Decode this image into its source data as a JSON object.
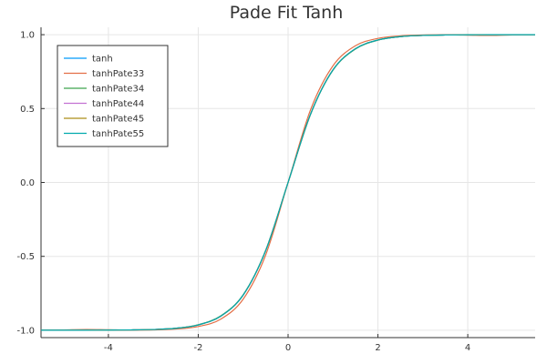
{
  "chart_data": {
    "type": "line",
    "title": "Pade Fit Tanh",
    "xlabel": "",
    "ylabel": "",
    "xlim": [
      -5.5,
      5.5
    ],
    "ylim": [
      -1.05,
      1.05
    ],
    "xticks": [
      -4,
      -2,
      0,
      2,
      4
    ],
    "xtick_labels": [
      "-4",
      "-2",
      "0",
      "2",
      "4"
    ],
    "yticks": [
      -1.0,
      -0.5,
      0.0,
      0.5,
      1.0
    ],
    "ytick_labels": [
      "-1.0",
      "-0.5",
      "0.0",
      "0.5",
      "1.0"
    ],
    "grid": true,
    "legend_position": "top-left",
    "x": [
      -5.5,
      -5.0,
      -4.5,
      -4.0,
      -3.5,
      -3.0,
      -2.5,
      -2.0,
      -1.5,
      -1.0,
      -0.5,
      0.0,
      0.5,
      1.0,
      1.5,
      2.0,
      2.5,
      3.0,
      3.5,
      4.0,
      4.5,
      5.0,
      5.5
    ],
    "series": [
      {
        "name": "tanh",
        "color": "#009AFA",
        "values": [
          -1.0,
          -1.0,
          -1.0,
          -0.999,
          -0.998,
          -0.995,
          -0.987,
          -0.964,
          -0.905,
          -0.762,
          -0.462,
          0.0,
          0.462,
          0.762,
          0.905,
          0.964,
          0.987,
          0.995,
          0.998,
          0.999,
          1.0,
          1.0,
          1.0
        ]
      },
      {
        "name": "tanhPate33",
        "color": "#E36F47",
        "values": [
          -1.0,
          -0.998,
          -0.995,
          -0.997,
          -0.999,
          -0.998,
          -0.992,
          -0.975,
          -0.925,
          -0.79,
          -0.492,
          0.0,
          0.492,
          0.79,
          0.925,
          0.975,
          0.992,
          0.998,
          0.999,
          0.997,
          0.995,
          0.998,
          1.0
        ]
      },
      {
        "name": "tanhPate34",
        "color": "#3EA44E",
        "values": [
          -1.0,
          -1.0,
          -1.0,
          -0.999,
          -0.998,
          -0.995,
          -0.987,
          -0.963,
          -0.903,
          -0.76,
          -0.461,
          0.0,
          0.461,
          0.76,
          0.903,
          0.963,
          0.987,
          0.995,
          0.998,
          0.999,
          1.0,
          1.0,
          1.0
        ]
      },
      {
        "name": "tanhPate44",
        "color": "#C371D2",
        "values": [
          -1.0,
          -1.0,
          -1.0,
          -0.999,
          -0.998,
          -0.995,
          -0.987,
          -0.964,
          -0.905,
          -0.762,
          -0.462,
          0.0,
          0.462,
          0.762,
          0.905,
          0.964,
          0.987,
          0.995,
          0.998,
          0.999,
          1.0,
          1.0,
          1.0
        ]
      },
      {
        "name": "tanhPate45",
        "color": "#AC8D18",
        "values": [
          -1.0,
          -1.0,
          -1.0,
          -0.999,
          -0.998,
          -0.995,
          -0.987,
          -0.964,
          -0.905,
          -0.762,
          -0.462,
          0.0,
          0.462,
          0.762,
          0.905,
          0.964,
          0.987,
          0.995,
          0.998,
          0.999,
          1.0,
          1.0,
          1.0
        ]
      },
      {
        "name": "tanhPate55",
        "color": "#00A9AD",
        "values": [
          -1.0,
          -1.0,
          -1.0,
          -0.999,
          -0.998,
          -0.995,
          -0.987,
          -0.964,
          -0.905,
          -0.762,
          -0.462,
          0.0,
          0.462,
          0.762,
          0.905,
          0.964,
          0.987,
          0.995,
          0.998,
          0.999,
          1.0,
          1.0,
          1.0
        ]
      }
    ]
  }
}
